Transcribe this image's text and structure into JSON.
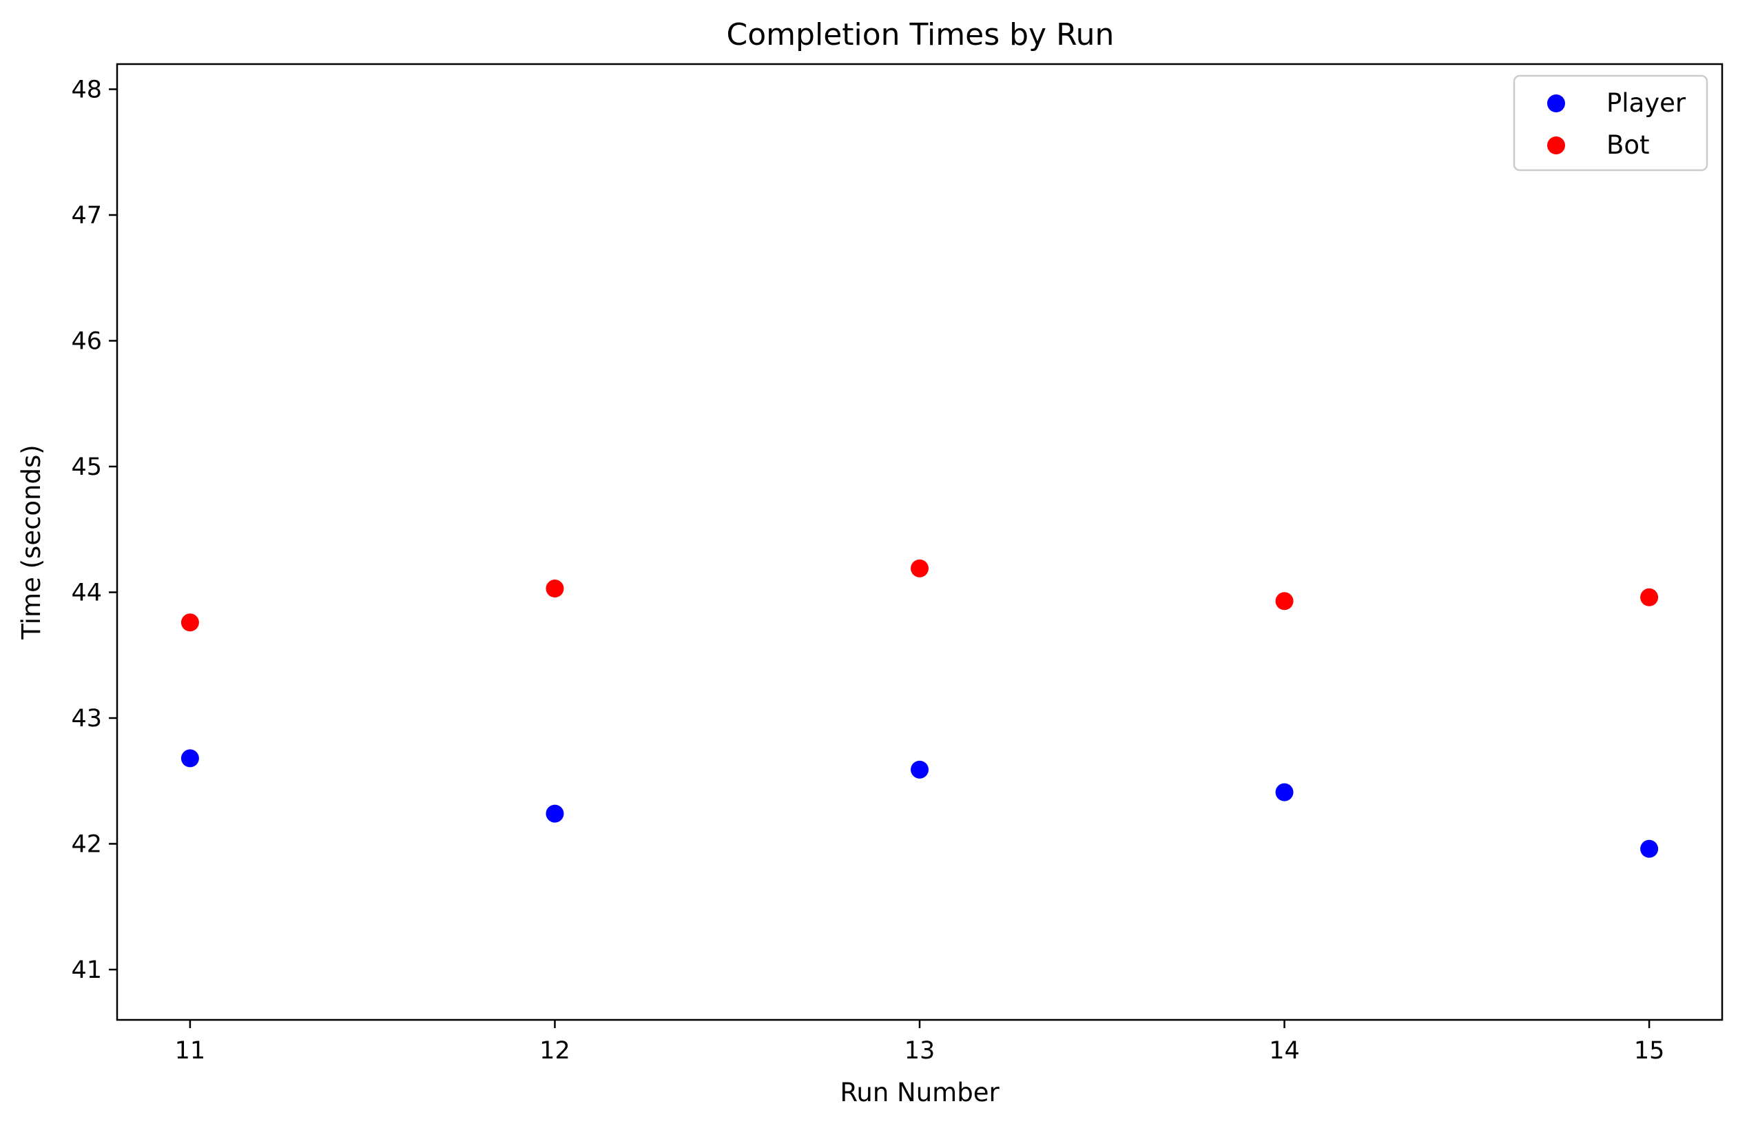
{
  "chart_data": {
    "type": "scatter",
    "title": "Completion Times by Run",
    "xlabel": "Run Number",
    "ylabel": "Time (seconds)",
    "x": [
      11,
      12,
      13,
      14,
      15
    ],
    "series": [
      {
        "name": "Player",
        "color": "#0000ff",
        "values": [
          42.68,
          42.24,
          42.59,
          42.41,
          41.96
        ]
      },
      {
        "name": "Bot",
        "color": "#ff0000",
        "values": [
          43.76,
          44.03,
          44.19,
          43.93,
          43.96
        ]
      }
    ],
    "xlim": [
      10.8,
      15.2
    ],
    "ylim": [
      40.6,
      48.2
    ],
    "xticks": [
      11,
      12,
      13,
      14,
      15
    ],
    "yticks": [
      41,
      42,
      43,
      44,
      45,
      46,
      47,
      48
    ],
    "grid": false,
    "legend": "top-right"
  }
}
